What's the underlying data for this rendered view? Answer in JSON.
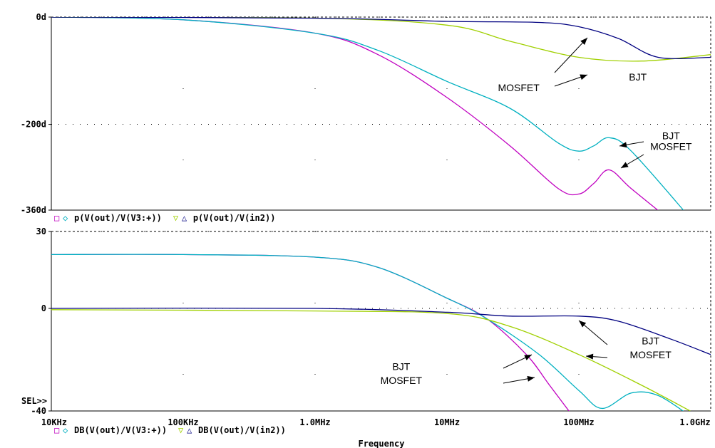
{
  "chart_data": [
    {
      "type": "line",
      "panel": "phase",
      "x_scale": "log",
      "xlim": [
        10000,
        1000000000
      ],
      "ylim": [
        -360,
        0
      ],
      "y_ticks": [
        "0d",
        "-200d",
        "-360d"
      ],
      "y_tick_values": [
        0,
        -200,
        -360
      ],
      "legend": [
        {
          "markers": [
            "□",
            "◇"
          ],
          "text": "p(V(out)/V(V3:+))",
          "marker_colors": [
            "#c000c0",
            "#00b0c0"
          ]
        },
        {
          "markers": [
            "▽",
            "△"
          ],
          "text": "p(V(out)/V(in2))",
          "marker_colors": [
            "#a0d000",
            "#000080"
          ]
        }
      ],
      "series": [
        {
          "name": "",
          "color": "#c000c0",
          "points": [
            [
              10000,
              0
            ],
            [
              100000,
              -5
            ],
            [
              1000000,
              -30
            ],
            [
              3000000,
              -70
            ],
            [
              10000000,
              -150
            ],
            [
              30000000,
              -240
            ],
            [
              70000000,
              -320
            ],
            [
              100000000,
              -330
            ],
            [
              130000000,
              -310
            ],
            [
              170000000,
              -285
            ],
            [
              250000000,
              -320
            ],
            [
              500000000,
              -380
            ]
          ]
        },
        {
          "name": "",
          "color": "#00b0c0",
          "points": [
            [
              10000,
              0
            ],
            [
              100000,
              -5
            ],
            [
              1000000,
              -30
            ],
            [
              3000000,
              -62
            ],
            [
              10000000,
              -120
            ],
            [
              30000000,
              -170
            ],
            [
              70000000,
              -235
            ],
            [
              100000000,
              -250
            ],
            [
              130000000,
              -240
            ],
            [
              170000000,
              -225
            ],
            [
              250000000,
              -250
            ],
            [
              700000000,
              -375
            ]
          ]
        },
        {
          "name": "",
          "color": "#a0d000",
          "points": [
            [
              10000,
              0
            ],
            [
              1000000,
              -2
            ],
            [
              10000000,
              -15
            ],
            [
              30000000,
              -45
            ],
            [
              100000000,
              -75
            ],
            [
              300000000,
              -82
            ],
            [
              1000000000,
              -70
            ]
          ]
        },
        {
          "name": "",
          "color": "#000080",
          "points": [
            [
              10000,
              0
            ],
            [
              1000000,
              -2
            ],
            [
              10000000,
              -8
            ],
            [
              50000000,
              -10
            ],
            [
              100000000,
              -18
            ],
            [
              200000000,
              -40
            ],
            [
              400000000,
              -75
            ],
            [
              1000000000,
              -75
            ]
          ]
        }
      ],
      "annotations": [
        {
          "lines": [
            "BJT"
          ],
          "text_x": 280000000,
          "text_y": -118
        },
        {
          "lines": [
            "MOSFET"
          ],
          "text_x": 35000000,
          "text_y": -138
        },
        {
          "lines": [
            "BJT"
          ],
          "text_x": 500000000,
          "text_y": -228
        },
        {
          "lines": [
            "MOSFET"
          ],
          "text_x": 500000000,
          "text_y": -248
        }
      ]
    },
    {
      "type": "line",
      "panel": "magnitude",
      "x_scale": "log",
      "xlim": [
        10000,
        1000000000
      ],
      "ylim": [
        -40,
        30
      ],
      "y_ticks": [
        "30",
        "0",
        "-40"
      ],
      "y_tick_values": [
        30,
        0,
        -40
      ],
      "x_ticks": [
        "10KHz",
        "100KHz",
        "1.0MHz",
        "10MHz",
        "100MHz",
        "1.0GHz"
      ],
      "x_tick_values": [
        10000,
        100000,
        1000000,
        10000000,
        100000000,
        1000000000
      ],
      "xlabel": "Frequency",
      "legend": [
        {
          "markers": [
            "□",
            "◇"
          ],
          "text": "DB(V(out)/V(V3:+))",
          "marker_colors": [
            "#c000c0",
            "#00b0c0"
          ]
        },
        {
          "markers": [
            "▽",
            "△"
          ],
          "text": "DB(V(out)/V(in2))",
          "marker_colors": [
            "#a0d000",
            "#000080"
          ]
        }
      ],
      "series": [
        {
          "name": "",
          "color": "#c000c0",
          "points": [
            [
              10000,
              21
            ],
            [
              100000,
              21
            ],
            [
              1000000,
              20
            ],
            [
              3000000,
              16
            ],
            [
              10000000,
              4
            ],
            [
              20000000,
              -4
            ],
            [
              40000000,
              -18
            ],
            [
              60000000,
              -30
            ],
            [
              90000000,
              -42
            ]
          ]
        },
        {
          "name": "",
          "color": "#00b0c0",
          "points": [
            [
              10000,
              21
            ],
            [
              100000,
              21
            ],
            [
              1000000,
              20
            ],
            [
              3000000,
              16
            ],
            [
              10000000,
              4
            ],
            [
              20000000,
              -4
            ],
            [
              50000000,
              -18
            ],
            [
              100000000,
              -32
            ],
            [
              150000000,
              -39
            ],
            [
              250000000,
              -33
            ],
            [
              400000000,
              -34
            ],
            [
              700000000,
              -42
            ]
          ]
        },
        {
          "name": "",
          "color": "#a0d000",
          "points": [
            [
              10000,
              -0.5
            ],
            [
              1000000,
              -1
            ],
            [
              10000000,
              -2
            ],
            [
              30000000,
              -7
            ],
            [
              100000000,
              -18
            ],
            [
              300000000,
              -30
            ],
            [
              700000000,
              -40
            ]
          ]
        },
        {
          "name": "",
          "color": "#000080",
          "points": [
            [
              10000,
              0
            ],
            [
              1000000,
              0
            ],
            [
              10000000,
              -1.5
            ],
            [
              30000000,
              -3
            ],
            [
              100000000,
              -3
            ],
            [
              200000000,
              -5
            ],
            [
              500000000,
              -12
            ],
            [
              1000000000,
              -18
            ]
          ]
        }
      ],
      "annotations": [
        {
          "lines": [
            "BJT"
          ],
          "text_x": 350000000,
          "text_y": -14
        },
        {
          "lines": [
            "MOSFET"
          ],
          "text_x": 350000000,
          "text_y": -19.5
        },
        {
          "lines": [
            "BJT"
          ],
          "text_x": 4500000,
          "text_y": -24
        },
        {
          "lines": [
            "MOSFET"
          ],
          "text_x": 4500000,
          "text_y": -29.5
        }
      ],
      "sel_marker": "SEL>>"
    }
  ]
}
